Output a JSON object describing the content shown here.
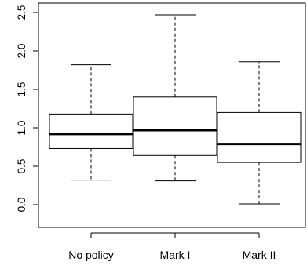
{
  "chart_data": {
    "type": "boxplot",
    "title": "",
    "xlabel": "",
    "ylabel": "",
    "ylim": [
      0,
      2.5
    ],
    "yticks": [
      0.0,
      0.5,
      1.0,
      1.5,
      2.0,
      2.5
    ],
    "ytick_labels": [
      "0.0",
      "0.5",
      "1.0",
      "1.5",
      "2.0",
      "2.5"
    ],
    "categories": [
      "No policy",
      "Mark I",
      "Mark II"
    ],
    "boxes": [
      {
        "category": "No policy",
        "whisker_low": 0.32,
        "q1": 0.73,
        "median": 0.92,
        "q3": 1.18,
        "whisker_high": 1.82
      },
      {
        "category": "Mark I",
        "whisker_low": 0.31,
        "q1": 0.64,
        "median": 0.97,
        "q3": 1.4,
        "whisker_high": 2.47
      },
      {
        "category": "Mark II",
        "whisker_low": 0.01,
        "q1": 0.55,
        "median": 0.79,
        "q3": 1.2,
        "whisker_high": 1.86
      }
    ],
    "grid": false,
    "legend": "none"
  }
}
